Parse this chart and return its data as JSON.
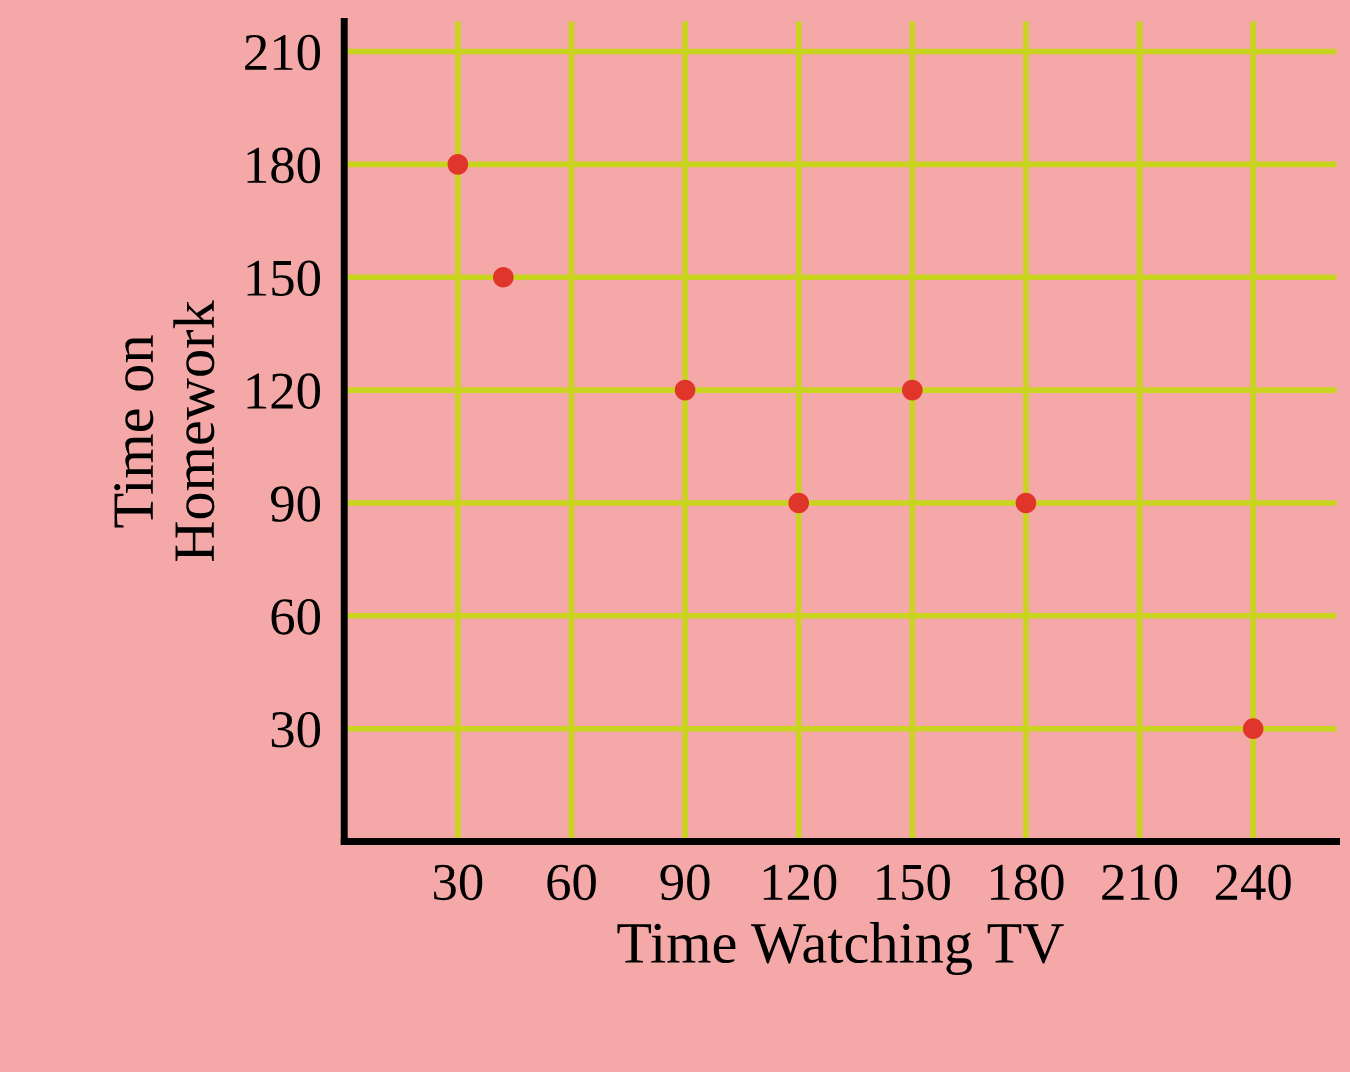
{
  "chart_data": {
    "type": "scatter",
    "xlabel": "Time Watching TV",
    "ylabel": "Time on\nHomework",
    "x": [
      30,
      42,
      90,
      120,
      150,
      180,
      240
    ],
    "series": [
      {
        "color": "#e0352b",
        "values": [
          180,
          150,
          120,
          90,
          120,
          90,
          30
        ]
      }
    ],
    "xlim": [
      0,
      262
    ],
    "ylim": [
      0,
      218
    ],
    "xticks": [
      30,
      60,
      90,
      120,
      150,
      180,
      210,
      240
    ],
    "yticks": [
      30,
      60,
      90,
      120,
      150,
      180,
      210
    ],
    "grid": true,
    "marker": "circle"
  }
}
